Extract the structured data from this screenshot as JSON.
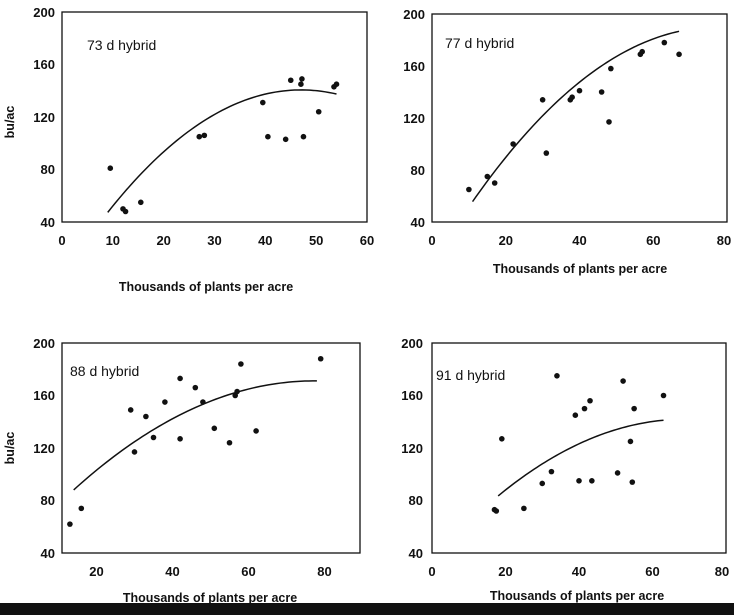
{
  "chart_data": [
    {
      "type": "scatter",
      "title": "73 d hybrid",
      "xlabel": "Thousands of plants per acre",
      "ylabel": "bu/ac",
      "xlim": [
        0,
        60
      ],
      "ylim": [
        40,
        200
      ],
      "xticks": [
        "0",
        "10",
        "20",
        "30",
        "40",
        "50",
        "60"
      ],
      "yticks": [
        "40",
        "80",
        "120",
        "160",
        "200"
      ],
      "points": [
        [
          9.5,
          81
        ],
        [
          12,
          50
        ],
        [
          12.5,
          48
        ],
        [
          15.5,
          55
        ],
        [
          27,
          105
        ],
        [
          28,
          106
        ],
        [
          39.5,
          131
        ],
        [
          40.5,
          105
        ],
        [
          44,
          103
        ],
        [
          45,
          148
        ],
        [
          47,
          145
        ],
        [
          47.2,
          149
        ],
        [
          47.5,
          105
        ],
        [
          50.5,
          124
        ],
        [
          53.5,
          143
        ],
        [
          54,
          145
        ]
      ],
      "fit": {
        "form": "quadratic",
        "coeffs": [
          -2.04,
          6.067,
          -0.0645
        ],
        "xrange": [
          9,
          54
        ]
      }
    },
    {
      "type": "scatter",
      "title": "77 d hybrid",
      "xlabel": "Thousands of plants per acre",
      "ylabel": "",
      "xlim": [
        0,
        80
      ],
      "ylim": [
        40,
        200
      ],
      "xticks": [
        "0",
        "20",
        "40",
        "60",
        "80"
      ],
      "yticks": [
        "40",
        "80",
        "120",
        "160",
        "200"
      ],
      "points": [
        [
          10,
          65
        ],
        [
          15,
          75
        ],
        [
          17,
          70
        ],
        [
          22,
          100
        ],
        [
          30,
          134
        ],
        [
          31,
          93
        ],
        [
          37.5,
          134
        ],
        [
          38,
          136
        ],
        [
          40,
          141
        ],
        [
          46,
          140
        ],
        [
          48,
          117
        ],
        [
          48.5,
          158
        ],
        [
          56.5,
          169
        ],
        [
          57,
          171
        ],
        [
          63,
          178
        ],
        [
          67,
          169
        ]
      ],
      "fit": {
        "form": "quadratic",
        "coeffs": [
          7.32,
          4.734,
          -0.0307
        ],
        "xrange": [
          11,
          67
        ]
      }
    },
    {
      "type": "scatter",
      "title": "88 d hybrid",
      "xlabel": "Thousands of plants per acre",
      "ylabel": "bu/ac",
      "xlim": [
        10,
        90
      ],
      "ylim": [
        40,
        200
      ],
      "xticks": [
        "20",
        "40",
        "60",
        "80"
      ],
      "yticks": [
        "40",
        "80",
        "120",
        "160",
        "200"
      ],
      "points": [
        [
          13,
          62
        ],
        [
          16,
          74
        ],
        [
          29,
          149
        ],
        [
          30,
          117
        ],
        [
          33,
          144
        ],
        [
          35,
          128
        ],
        [
          38,
          155
        ],
        [
          42,
          173
        ],
        [
          42,
          127
        ],
        [
          46,
          166
        ],
        [
          48,
          155
        ],
        [
          51,
          135
        ],
        [
          55,
          124
        ],
        [
          56.5,
          160
        ],
        [
          57,
          163
        ],
        [
          58,
          184
        ],
        [
          62,
          133
        ],
        [
          79,
          188
        ]
      ],
      "fit": {
        "form": "quadratic",
        "coeffs": [
          47.31,
          3.202,
          -0.0207
        ],
        "xrange": [
          14,
          78
        ]
      }
    },
    {
      "type": "scatter",
      "title": "91 d hybrid",
      "xlabel": "Thousands of plants per acre",
      "ylabel": "",
      "xlim": [
        0,
        80
      ],
      "ylim": [
        40,
        200
      ],
      "xticks": [
        "0",
        "20",
        "40",
        "60",
        "80"
      ],
      "yticks": [
        "40",
        "80",
        "120",
        "160",
        "200"
      ],
      "points": [
        [
          17,
          73
        ],
        [
          17.5,
          72
        ],
        [
          19,
          127
        ],
        [
          25,
          74
        ],
        [
          30,
          93
        ],
        [
          32.5,
          102
        ],
        [
          34,
          175
        ],
        [
          39,
          145
        ],
        [
          40,
          95
        ],
        [
          41.5,
          150
        ],
        [
          43,
          156
        ],
        [
          43.5,
          95
        ],
        [
          50.5,
          101
        ],
        [
          52,
          171
        ],
        [
          54,
          125
        ],
        [
          54.5,
          94
        ],
        [
          55,
          150
        ],
        [
          63,
          160
        ]
      ],
      "fit": {
        "form": "quadratic",
        "coeffs": [
          34.7,
          3.12,
          -0.0227
        ],
        "xrange": [
          18,
          63
        ]
      }
    }
  ]
}
